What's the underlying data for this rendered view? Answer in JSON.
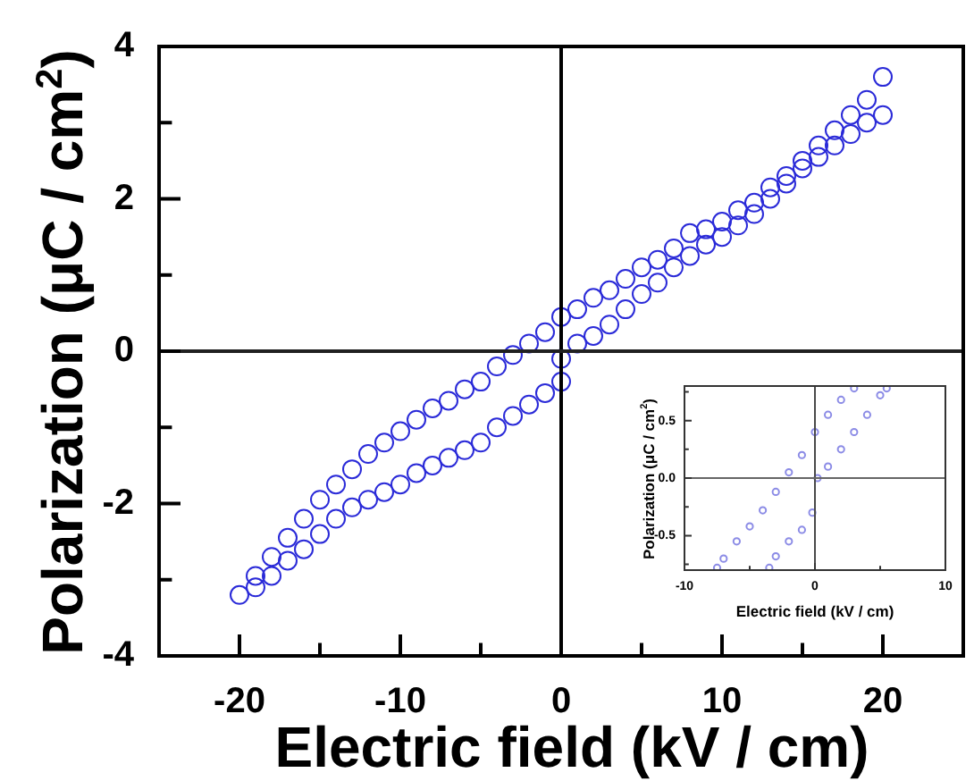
{
  "chart_data": [
    {
      "type": "scatter",
      "xlabel": "Electric field (kV / cm)",
      "ylabel": "Polarization (μC / cm$^{2}$)",
      "marker": "circle",
      "xlim": [
        -25,
        25
      ],
      "ylim": [
        -4,
        4
      ],
      "xticks": [
        -20,
        {
          "value": -15,
          "label": null
        },
        -10,
        {
          "value": -5,
          "label": null
        },
        0,
        {
          "value": 5,
          "label": null
        },
        10,
        {
          "value": 15,
          "label": null
        },
        20
      ],
      "yticks": [
        -4,
        {
          "value": -3,
          "label": null
        },
        -2,
        {
          "value": -1,
          "label": null
        },
        0,
        {
          "value": 1,
          "label": null
        },
        2,
        {
          "value": 3,
          "label": null
        },
        4
      ],
      "ref_lines": [
        {
          "axis": "x",
          "value": 0,
          "color": "#000000"
        },
        {
          "axis": "y",
          "value": 0,
          "color": "#202020"
        }
      ],
      "series": [
        {
          "color": "#2a2ad8",
          "x": [
            20,
            19,
            18,
            17,
            16,
            15,
            14,
            13,
            12,
            11,
            10,
            9,
            8,
            7,
            6,
            5,
            4,
            3,
            2,
            1,
            0,
            -1,
            -2,
            -3,
            -4,
            -5,
            -6,
            -7,
            -8,
            -9,
            -10,
            -11,
            -12,
            -13,
            -14,
            -15,
            -16,
            -17,
            -18,
            -19,
            -20,
            -19,
            -18,
            -17,
            -16,
            -15,
            -14,
            -13,
            -12,
            -11,
            -10,
            -9,
            -8,
            -7,
            -6,
            -5,
            -4,
            -3,
            -2,
            -1,
            0,
            0,
            1,
            2,
            3,
            4,
            5,
            6,
            7,
            8,
            9,
            10,
            11,
            12,
            13,
            14,
            15,
            16,
            17,
            18,
            19,
            20
          ],
          "values": [
            3.6,
            3.3,
            3.1,
            2.9,
            2.7,
            2.5,
            2.3,
            2.15,
            1.95,
            1.85,
            1.7,
            1.6,
            1.55,
            1.35,
            1.2,
            1.1,
            0.95,
            0.8,
            0.7,
            0.55,
            0.45,
            0.25,
            0.1,
            -0.05,
            -0.2,
            -0.4,
            -0.5,
            -0.65,
            -0.75,
            -0.9,
            -1.05,
            -1.2,
            -1.35,
            -1.55,
            -1.75,
            -1.95,
            -2.2,
            -2.45,
            -2.7,
            -2.95,
            -3.2,
            -3.1,
            -2.95,
            -2.75,
            -2.6,
            -2.4,
            -2.2,
            -2.05,
            -1.95,
            -1.85,
            -1.75,
            -1.6,
            -1.5,
            -1.4,
            -1.3,
            -1.2,
            -1.0,
            -0.85,
            -0.7,
            -0.55,
            -0.4,
            -0.1,
            0.1,
            0.2,
            0.35,
            0.55,
            0.75,
            0.9,
            1.1,
            1.25,
            1.4,
            1.5,
            1.65,
            1.8,
            2.0,
            2.2,
            2.4,
            2.55,
            2.7,
            2.85,
            3.0,
            3.1
          ]
        }
      ]
    },
    {
      "type": "scatter",
      "xlabel": "Electric field (kV / cm)",
      "ylabel": "Polarization (μC / cm$^{2}$)",
      "marker": "circle",
      "xlim": [
        -10,
        10
      ],
      "ylim": [
        -0.8,
        0.8
      ],
      "xticks": [
        -10,
        {
          "value": -5,
          "label": null
        },
        0,
        {
          "value": 5,
          "label": null
        },
        10
      ],
      "yticks": [
        {
          "value": -0.75,
          "label": null
        },
        -0.5,
        {
          "value": -0.25,
          "label": null
        },
        {
          "value": 0,
          "label": "0.0"
        },
        {
          "value": 0.25,
          "label": null
        },
        0.5,
        {
          "value": 0.75,
          "label": null
        }
      ],
      "ref_lines": [
        {
          "axis": "x",
          "value": 0,
          "color": "#4a4a4a"
        },
        {
          "axis": "y",
          "value": 0,
          "color": "#666666"
        }
      ],
      "series": [
        {
          "color": "#8c8ce6",
          "x": [
            -7.5,
            -7,
            -6,
            -5,
            -4,
            -3,
            -2,
            -1,
            0,
            1,
            2,
            3,
            -3.5,
            -3,
            -2,
            -1,
            -0.2,
            0.2,
            1,
            2,
            3,
            4,
            5,
            5.5
          ],
          "values": [
            -0.78,
            -0.7,
            -0.55,
            -0.42,
            -0.28,
            -0.12,
            0.05,
            0.2,
            0.4,
            0.55,
            0.68,
            0.78,
            -0.78,
            -0.68,
            -0.55,
            -0.45,
            -0.3,
            0.0,
            0.1,
            0.25,
            0.4,
            0.55,
            0.72,
            0.78
          ]
        }
      ]
    }
  ]
}
